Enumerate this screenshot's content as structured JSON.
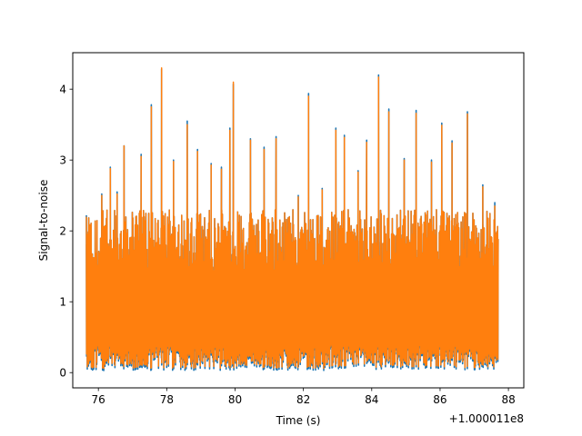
{
  "chart_data": {
    "type": "line",
    "title": "",
    "xlabel": "Time (s)",
    "ylabel": "Signal-to-noise",
    "x_offset_label": "+1.000011e8",
    "xlim": [
      75.25,
      88.45
    ],
    "ylim": [
      -0.215,
      4.515
    ],
    "x_ticks": [
      76,
      78,
      80,
      82,
      84,
      86,
      88
    ],
    "x_tick_labels": [
      "76",
      "78",
      "80",
      "82",
      "84",
      "86",
      "88"
    ],
    "y_ticks": [
      0,
      1,
      2,
      3,
      4
    ],
    "y_tick_labels": [
      "0",
      "1",
      "2",
      "3",
      "4"
    ],
    "grid": false,
    "legend": "none",
    "series": [
      {
        "color": "#1f77b4",
        "x_range": [
          75.65,
          87.7
        ],
        "min_value": 0.03,
        "peaks": [
          {
            "x": 75.65,
            "y": 2.22
          },
          {
            "x": 76.1,
            "y": 2.52
          },
          {
            "x": 76.35,
            "y": 2.9
          },
          {
            "x": 76.55,
            "y": 2.55
          },
          {
            "x": 76.75,
            "y": 3.2
          },
          {
            "x": 77.25,
            "y": 3.08
          },
          {
            "x": 77.55,
            "y": 3.78
          },
          {
            "x": 77.85,
            "y": 4.28
          },
          {
            "x": 78.2,
            "y": 3.0
          },
          {
            "x": 78.6,
            "y": 3.55
          },
          {
            "x": 78.9,
            "y": 3.15
          },
          {
            "x": 79.3,
            "y": 2.95
          },
          {
            "x": 79.6,
            "y": 2.9
          },
          {
            "x": 79.85,
            "y": 3.45
          },
          {
            "x": 79.95,
            "y": 4.07
          },
          {
            "x": 80.45,
            "y": 3.3
          },
          {
            "x": 80.85,
            "y": 3.18
          },
          {
            "x": 81.2,
            "y": 3.33
          },
          {
            "x": 81.85,
            "y": 2.5
          },
          {
            "x": 82.15,
            "y": 3.94
          },
          {
            "x": 82.55,
            "y": 2.6
          },
          {
            "x": 82.95,
            "y": 3.45
          },
          {
            "x": 83.2,
            "y": 3.35
          },
          {
            "x": 83.6,
            "y": 2.85
          },
          {
            "x": 83.85,
            "y": 3.28
          },
          {
            "x": 84.2,
            "y": 4.2
          },
          {
            "x": 84.5,
            "y": 3.72
          },
          {
            "x": 84.95,
            "y": 3.02
          },
          {
            "x": 85.3,
            "y": 3.7
          },
          {
            "x": 85.75,
            "y": 3.0
          },
          {
            "x": 86.05,
            "y": 3.52
          },
          {
            "x": 86.35,
            "y": 3.27
          },
          {
            "x": 86.8,
            "y": 3.68
          },
          {
            "x": 87.25,
            "y": 2.65
          },
          {
            "x": 87.6,
            "y": 2.4
          }
        ]
      },
      {
        "color": "#ff7f0e",
        "x_range": [
          75.65,
          87.7
        ],
        "min_value": 0.06,
        "peaks": [
          {
            "x": 75.65,
            "y": 2.2
          },
          {
            "x": 76.1,
            "y": 2.5
          },
          {
            "x": 76.35,
            "y": 2.88
          },
          {
            "x": 76.55,
            "y": 2.52
          },
          {
            "x": 76.75,
            "y": 3.2
          },
          {
            "x": 77.25,
            "y": 3.05
          },
          {
            "x": 77.55,
            "y": 3.75
          },
          {
            "x": 77.85,
            "y": 4.3
          },
          {
            "x": 78.2,
            "y": 2.98
          },
          {
            "x": 78.6,
            "y": 3.5
          },
          {
            "x": 78.9,
            "y": 3.12
          },
          {
            "x": 79.3,
            "y": 2.93
          },
          {
            "x": 79.6,
            "y": 2.87
          },
          {
            "x": 79.85,
            "y": 3.42
          },
          {
            "x": 79.95,
            "y": 4.1
          },
          {
            "x": 80.45,
            "y": 3.28
          },
          {
            "x": 80.85,
            "y": 3.15
          },
          {
            "x": 81.2,
            "y": 3.3
          },
          {
            "x": 81.85,
            "y": 2.48
          },
          {
            "x": 82.15,
            "y": 3.9
          },
          {
            "x": 82.55,
            "y": 2.58
          },
          {
            "x": 82.95,
            "y": 3.42
          },
          {
            "x": 83.2,
            "y": 3.32
          },
          {
            "x": 83.6,
            "y": 2.83
          },
          {
            "x": 83.85,
            "y": 3.25
          },
          {
            "x": 84.2,
            "y": 4.17
          },
          {
            "x": 84.5,
            "y": 3.68
          },
          {
            "x": 84.95,
            "y": 3.0
          },
          {
            "x": 85.3,
            "y": 3.66
          },
          {
            "x": 85.75,
            "y": 2.97
          },
          {
            "x": 86.05,
            "y": 3.49
          },
          {
            "x": 86.35,
            "y": 3.24
          },
          {
            "x": 86.8,
            "y": 3.65
          },
          {
            "x": 87.25,
            "y": 2.62
          },
          {
            "x": 87.6,
            "y": 2.35
          }
        ]
      }
    ]
  }
}
